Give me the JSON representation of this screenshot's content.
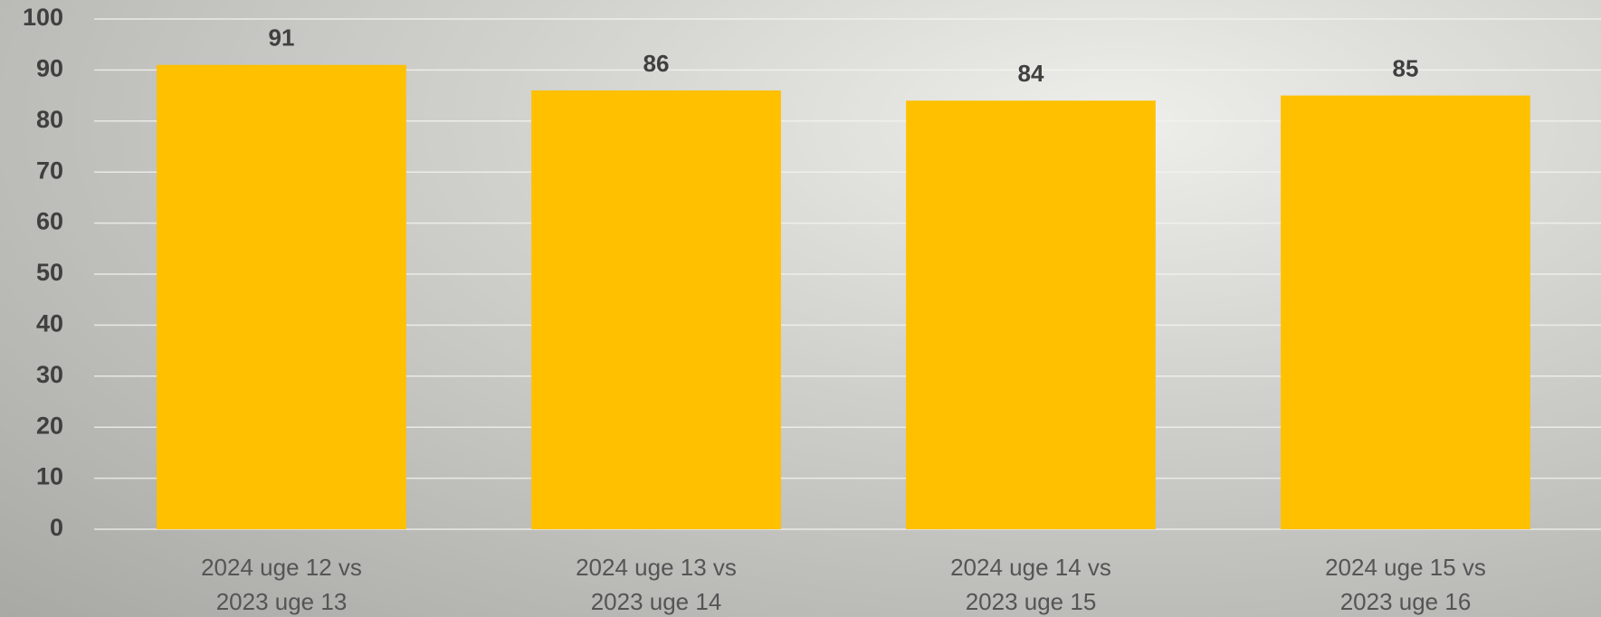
{
  "chart_data": {
    "type": "bar",
    "categories": [
      "2024 uge 12 vs 2023 uge 13",
      "2024 uge 13 vs 2023 uge 14",
      "2024 uge 14 vs 2023 uge 15",
      "2024 uge 15 vs 2023 uge 16"
    ],
    "values": [
      91,
      86,
      84,
      85
    ],
    "color": "#ffc000",
    "ylim": [
      0,
      100
    ],
    "yticks": [
      0,
      10,
      20,
      30,
      40,
      50,
      60,
      70,
      80,
      90,
      100
    ],
    "grid": true
  }
}
